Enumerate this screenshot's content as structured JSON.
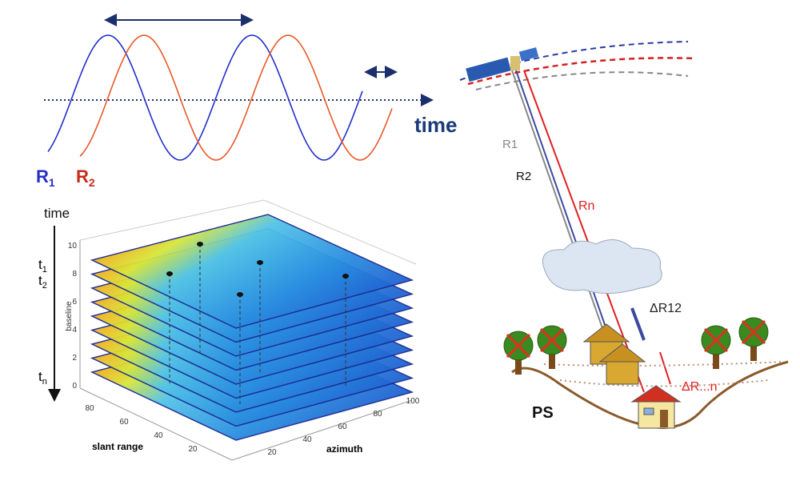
{
  "waves": {
    "time_label": "time",
    "r1": {
      "letter": "R",
      "sub": "1"
    },
    "r2": {
      "letter": "R",
      "sub": "2"
    }
  },
  "stack": {
    "time_label": "time",
    "t1": {
      "letter": "t",
      "sub": "1"
    },
    "t2": {
      "letter": "t",
      "sub": "2"
    },
    "tn": {
      "letter": "t",
      "sub": "n"
    },
    "vertical_ticks": [
      "10",
      "8",
      "6",
      "4",
      "2",
      "0"
    ],
    "vertical_axis_label": "baseline",
    "slant_range_ticks": [
      "80",
      "60",
      "40",
      "20"
    ],
    "azimuth_ticks": [
      "20",
      "40",
      "60",
      "80",
      "100"
    ],
    "slant_range_label": "slant range",
    "azimuth_label": "azimuth"
  },
  "geometry": {
    "r1": "R1",
    "r2": "R2",
    "rn": "Rn",
    "delta_r12": "ΔR12",
    "delta_rn": "ΔR...n",
    "ps": "PS"
  }
}
